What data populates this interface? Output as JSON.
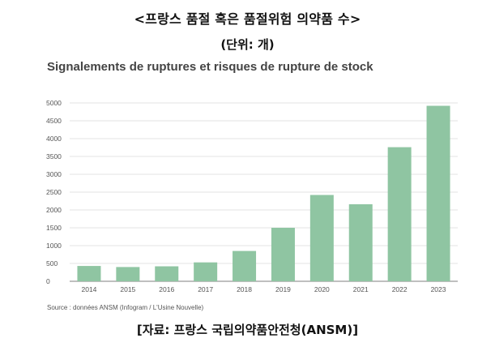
{
  "header": {
    "title": "<프랑스 품절 혹은 품절위험 의약품 수>",
    "unit": "(단위: 개)"
  },
  "chart_data": {
    "type": "bar",
    "title": "Signalements de ruptures et risques de rupture de stock",
    "categories": [
      "2014",
      "2015",
      "2016",
      "2017",
      "2018",
      "2019",
      "2020",
      "2021",
      "2022",
      "2023"
    ],
    "values": [
      430,
      400,
      420,
      530,
      850,
      1500,
      2420,
      2160,
      3760,
      4920
    ],
    "ylim": [
      0,
      5000
    ],
    "yticks": [
      0,
      500,
      1000,
      1500,
      2000,
      2500,
      3000,
      3500,
      4000,
      4500,
      5000
    ],
    "grid": true,
    "bar_color": "#8fc5a2",
    "source": "Source : données ANSM (Infogram / L'Usine Nouvelle)"
  },
  "footer": {
    "caption": "[자료: 프랑스 국립의약품안전청(ANSM)]"
  }
}
